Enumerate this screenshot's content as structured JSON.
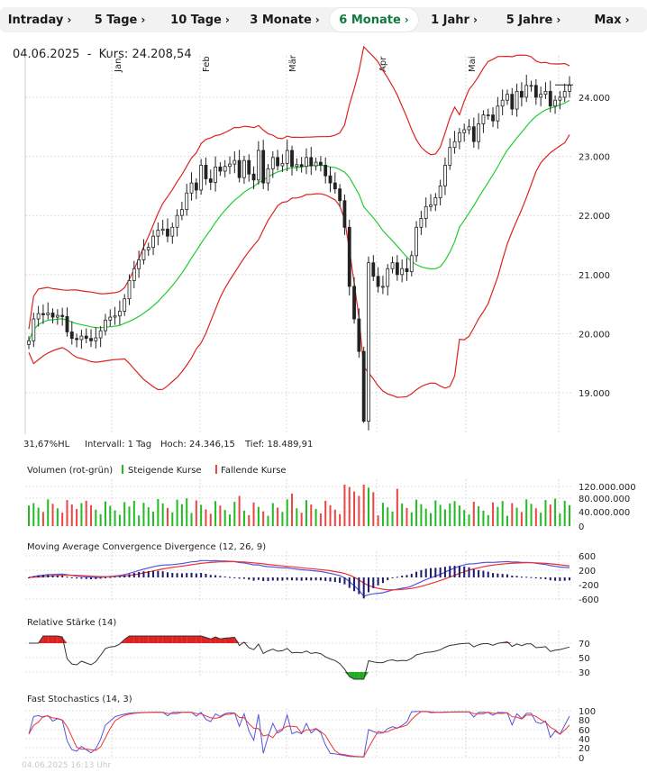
{
  "tabs": [
    {
      "label": "Intraday",
      "active": false
    },
    {
      "label": "5 Tage",
      "active": false
    },
    {
      "label": "10 Tage",
      "active": false
    },
    {
      "label": "3 Monate",
      "active": false
    },
    {
      "label": "6 Monate",
      "active": true
    },
    {
      "label": "1 Jahr",
      "active": false
    },
    {
      "label": "5 Jahre",
      "active": false
    },
    {
      "label": "Max",
      "active": false
    }
  ],
  "header": {
    "date": "04.06.2025",
    "separator": "-",
    "kurs_label": "Kurs:",
    "kurs_value": "24.208,54"
  },
  "stats": {
    "hl": "31,67%HL",
    "interval": "Intervall: 1 Tag",
    "high": "Hoch: 24.346,15",
    "low": "Tief: 18.489,91"
  },
  "months": [
    "Jan",
    "Feb",
    "Mär",
    "Apr",
    "Mai"
  ],
  "volume_legend": {
    "title": "Volumen (rot-grün)",
    "up": "Steigende Kurse",
    "down": "Fallende Kurse"
  },
  "panel_titles": {
    "macd": "Moving Average Convergence Divergence (12, 26, 9)",
    "rsi": "Relative Stärke (14)",
    "stoch": "Fast Stochastics (14, 3)"
  },
  "footer": "04.06.2025 16:13 Uhr",
  "colors": {
    "up": "#22bb22",
    "down": "#ee4444",
    "band": "#dd2222",
    "ma": "#22cc33",
    "macd": "#5555dd",
    "signal": "#ee3333",
    "hist": "#1a1a6e",
    "rsi": "#333333",
    "rsi_high": "#dd2222",
    "rsi_low": "#22aa22",
    "accent": "#0f7a3b"
  },
  "chart_data": [
    {
      "type": "candlestick",
      "title": "",
      "overlays": [
        "Bollinger Bands",
        "Moving Average"
      ],
      "y_ticks": [
        "24.000",
        "23.000",
        "22.000",
        "21.000",
        "20.000",
        "19.000"
      ],
      "ylim": [
        18300,
        24700
      ],
      "x_months": [
        "Jan",
        "Feb",
        "Mär",
        "Apr",
        "Mai"
      ],
      "closes": [
        19880,
        20250,
        20340,
        20320,
        20350,
        20280,
        20310,
        20290,
        20030,
        19920,
        19900,
        19960,
        19920,
        19880,
        19930,
        20050,
        20230,
        20280,
        20300,
        20380,
        20590,
        20900,
        21100,
        21250,
        21420,
        21460,
        21650,
        21750,
        21770,
        21650,
        21800,
        22000,
        22100,
        22380,
        22550,
        22430,
        22850,
        22620,
        22560,
        22820,
        22750,
        22830,
        22870,
        22930,
        22640,
        22930,
        22700,
        22600,
        23100,
        22550,
        22790,
        22980,
        22840,
        22880,
        23100,
        22830,
        22860,
        22830,
        22980,
        22840,
        22900,
        22850,
        22670,
        22550,
        22450,
        22250,
        21800,
        20800,
        20250,
        19700,
        18520,
        21200,
        20970,
        20800,
        20800,
        21100,
        21200,
        21000,
        21100,
        21050,
        21320,
        21800,
        21950,
        22150,
        22180,
        22300,
        22500,
        22850,
        23150,
        23250,
        23400,
        23450,
        23500,
        23250,
        23550,
        23700,
        23700,
        23600,
        23850,
        23950,
        24050,
        23800,
        24100,
        24000,
        24200,
        24200,
        24000,
        24050,
        24100,
        23850,
        23950,
        24000,
        24100,
        24200
      ],
      "y_label_level": 24208.54,
      "volume_ticks": [
        "120.000.000",
        "80.000.000",
        "40.000.000",
        "0"
      ],
      "macd_ticks": [
        "600",
        "200",
        "-200",
        "-600"
      ],
      "rsi_ticks": [
        "70",
        "50",
        "30"
      ],
      "stoch_ticks": [
        "100",
        "80",
        "60",
        "40",
        "20",
        "0"
      ]
    }
  ]
}
